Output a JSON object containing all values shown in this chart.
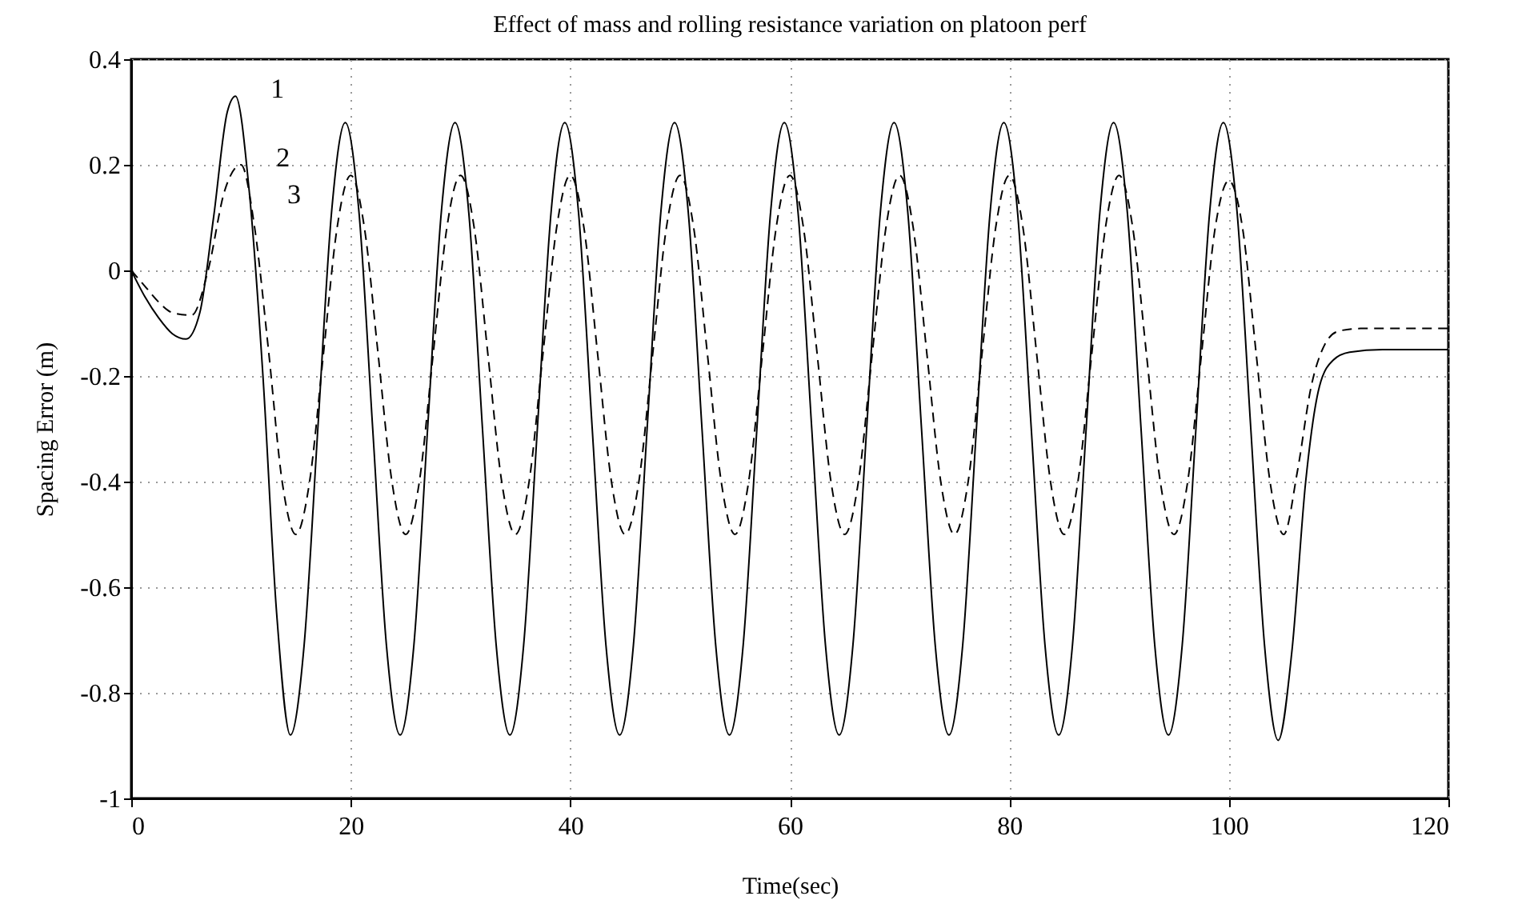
{
  "chart_data": {
    "type": "line",
    "title": "Effect of mass and rolling resistance variation on platoon perf",
    "xlabel": "Time(sec)",
    "ylabel": "Spacing Error (m)",
    "xlim": [
      0,
      120
    ],
    "xticks": [
      0,
      20,
      40,
      60,
      80,
      100,
      120
    ],
    "ylim": [
      -1,
      0.4
    ],
    "yticks": [
      -1,
      -0.8,
      -0.6,
      -0.4,
      -0.2,
      0,
      0.2,
      0.4
    ],
    "grid": true,
    "marker": "none",
    "series": [
      {
        "color": "#000000",
        "line_style": "solid",
        "x": [
          0,
          1.25,
          2.5,
          3.75,
          5,
          6.25,
          7.5,
          8.75,
          9.5,
          10.75,
          12,
          13.25,
          14.5,
          15.75,
          17,
          18.25,
          19.5,
          20.75,
          22,
          23.25,
          24.5,
          25.75,
          27,
          28.25,
          29.5,
          30.75,
          32,
          33.25,
          34.5,
          35.75,
          37,
          38.25,
          39.5,
          40.75,
          42,
          43.25,
          44.5,
          45.75,
          47,
          48.25,
          49.5,
          50.75,
          52,
          53.25,
          54.5,
          55.75,
          57,
          58.25,
          59.5,
          60.75,
          62,
          63.25,
          64.5,
          65.75,
          67,
          68.25,
          69.5,
          70.75,
          72,
          73.25,
          74.5,
          75.75,
          77,
          78.25,
          79.5,
          80.75,
          82,
          83.25,
          84.5,
          85.75,
          87,
          88.25,
          89.5,
          90.75,
          92,
          93.25,
          94.5,
          95.75,
          97,
          98.25,
          99.5,
          100.75,
          102,
          103.25,
          104.5,
          105.75,
          107,
          108.25,
          109.5,
          111,
          114,
          120
        ],
        "values": [
          0,
          -0.05,
          -0.09,
          -0.12,
          -0.13,
          -0.08,
          0.1,
          0.3,
          0.33,
          0.15,
          -0.2,
          -0.65,
          -0.88,
          -0.71,
          -0.3,
          0.11,
          0.28,
          0.11,
          -0.3,
          -0.71,
          -0.88,
          -0.71,
          -0.3,
          0.11,
          0.28,
          0.11,
          -0.3,
          -0.71,
          -0.88,
          -0.71,
          -0.3,
          0.11,
          0.28,
          0.11,
          -0.3,
          -0.71,
          -0.88,
          -0.71,
          -0.3,
          0.11,
          0.28,
          0.11,
          -0.3,
          -0.71,
          -0.88,
          -0.71,
          -0.3,
          0.11,
          0.28,
          0.11,
          -0.3,
          -0.71,
          -0.88,
          -0.71,
          -0.3,
          0.11,
          0.28,
          0.11,
          -0.3,
          -0.71,
          -0.88,
          -0.71,
          -0.3,
          0.11,
          0.28,
          0.11,
          -0.3,
          -0.71,
          -0.88,
          -0.71,
          -0.3,
          0.11,
          0.28,
          0.11,
          -0.3,
          -0.71,
          -0.88,
          -0.71,
          -0.3,
          0.11,
          0.28,
          0.11,
          -0.3,
          -0.71,
          -0.89,
          -0.72,
          -0.4,
          -0.22,
          -0.17,
          -0.155,
          -0.15,
          -0.15
        ]
      },
      {
        "color": "#000000",
        "line_style": "dashed",
        "x": [
          0,
          1.25,
          2.5,
          3.75,
          5.5,
          7,
          8.5,
          10,
          11.25,
          12.5,
          13.75,
          15,
          16.25,
          17.5,
          18.75,
          20,
          21.25,
          22.5,
          23.75,
          25,
          26.25,
          27.5,
          28.75,
          30,
          31.25,
          32.5,
          33.75,
          35,
          36.25,
          37.5,
          38.75,
          40,
          41.25,
          42.5,
          43.75,
          45,
          46.25,
          47.5,
          48.75,
          50,
          51.25,
          52.5,
          53.75,
          55,
          56.25,
          57.5,
          58.75,
          60,
          61.25,
          62.5,
          63.75,
          65,
          66.25,
          67.5,
          68.75,
          70,
          71.25,
          72.5,
          73.75,
          75,
          76.25,
          77.5,
          78.75,
          80,
          81.25,
          82.5,
          83.75,
          85,
          86.25,
          87.5,
          88.75,
          90,
          91.25,
          92.5,
          93.75,
          95,
          96.25,
          97.5,
          98.75,
          100,
          101.25,
          102.5,
          103.75,
          105,
          106.25,
          107.5,
          108.75,
          110,
          112,
          120
        ],
        "values": [
          0,
          -0.03,
          -0.06,
          -0.08,
          -0.085,
          0,
          0.15,
          0.2,
          0.08,
          -0.15,
          -0.4,
          -0.5,
          -0.4,
          -0.16,
          0.08,
          0.18,
          0.08,
          -0.16,
          -0.4,
          -0.5,
          -0.4,
          -0.16,
          0.08,
          0.18,
          0.08,
          -0.16,
          -0.4,
          -0.5,
          -0.4,
          -0.16,
          0.08,
          0.18,
          0.08,
          -0.16,
          -0.4,
          -0.5,
          -0.4,
          -0.16,
          0.08,
          0.18,
          0.08,
          -0.16,
          -0.4,
          -0.5,
          -0.4,
          -0.16,
          0.08,
          0.18,
          0.08,
          -0.16,
          -0.4,
          -0.5,
          -0.4,
          -0.16,
          0.08,
          0.18,
          0.08,
          -0.16,
          -0.4,
          -0.5,
          -0.4,
          -0.16,
          0.08,
          0.18,
          0.08,
          -0.16,
          -0.4,
          -0.5,
          -0.4,
          -0.16,
          0.08,
          0.18,
          0.08,
          -0.16,
          -0.4,
          -0.5,
          -0.4,
          -0.16,
          0.08,
          0.17,
          0.08,
          -0.16,
          -0.4,
          -0.5,
          -0.38,
          -0.22,
          -0.14,
          -0.115,
          -0.11,
          -0.11
        ]
      }
    ],
    "annotations": [
      {
        "text": "1",
        "x": 9.5,
        "y": 0.33
      },
      {
        "text": "2",
        "x": 10,
        "y": 0.2
      },
      {
        "text": "3",
        "x": 11,
        "y": 0.13
      }
    ]
  }
}
